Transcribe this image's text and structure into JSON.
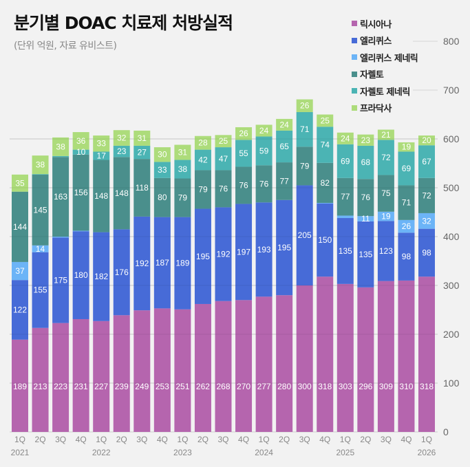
{
  "chart_data": {
    "type": "bar",
    "stacked": true,
    "title": "분기별 DOAC 치료제 처방실적",
    "subtitle": "(단위 억원, 자료 유비스트)",
    "xlabel": "",
    "ylabel": "",
    "ylim": [
      0,
      800
    ],
    "yticks": [
      0,
      100,
      200,
      300,
      400,
      500,
      600,
      700,
      800
    ],
    "grid": true,
    "legend_position": "top-right",
    "categories": [
      "1Q",
      "2Q",
      "3Q",
      "4Q",
      "1Q",
      "2Q",
      "3Q",
      "4Q",
      "1Q",
      "2Q",
      "3Q",
      "4Q",
      "1Q",
      "2Q",
      "3Q",
      "4Q",
      "1Q",
      "2Q",
      "3Q",
      "4Q",
      "1Q"
    ],
    "years": [
      "2021",
      "",
      "",
      "",
      "2022",
      "",
      "",
      "",
      "2023",
      "",
      "",
      "",
      "2024",
      "",
      "",
      "",
      "2025",
      "",
      "",
      "",
      "2026"
    ],
    "series": [
      {
        "name": "릭시아나",
        "color": "#b565ae",
        "values": [
          189,
          213,
          223,
          231,
          227,
          239,
          249,
          253,
          251,
          262,
          268,
          270,
          277,
          280,
          300,
          318,
          303,
          296,
          309,
          310,
          318
        ],
        "labels": [
          "189",
          "213",
          "223",
          "231",
          "227",
          "239",
          "249",
          "253",
          "251",
          "262",
          "268",
          "270",
          "277",
          "280",
          "300",
          "318",
          "303",
          "296",
          "309",
          "310",
          "318"
        ]
      },
      {
        "name": "엘리퀴스",
        "color": "#476bd7",
        "values": [
          122,
          155,
          175,
          180,
          182,
          176,
          192,
          187,
          189,
          195,
          192,
          197,
          193,
          195,
          205,
          150,
          135,
          135,
          123,
          98,
          98
        ],
        "labels": [
          "122",
          "155",
          "175",
          "180",
          "182",
          "176",
          "192",
          "187",
          "189",
          "195",
          "192",
          "197",
          "193",
          "195",
          "205",
          "150",
          "135",
          "135",
          "123",
          "98",
          "98"
        ]
      },
      {
        "name": "엘리퀴스 제네릭",
        "color": "#6cb4f7",
        "values": [
          37,
          14,
          2,
          1,
          0,
          0,
          0,
          0,
          0,
          0,
          0,
          0,
          0,
          0,
          0,
          1,
          5,
          11,
          19,
          26,
          32
        ],
        "labels": [
          "37",
          "14",
          "",
          "",
          "",
          "",
          "",
          "",
          "",
          "",
          "",
          "",
          "",
          "",
          "",
          "",
          "",
          "11",
          "19",
          "26",
          "32"
        ]
      },
      {
        "name": "자렐토",
        "color": "#4a8f8c",
        "values": [
          144,
          145,
          163,
          156,
          148,
          148,
          118,
          80,
          79,
          79,
          76,
          76,
          76,
          77,
          79,
          82,
          77,
          76,
          75,
          71,
          72
        ],
        "labels": [
          "144",
          "145",
          "163",
          "156",
          "148",
          "148",
          "118",
          "80",
          "79",
          "79",
          "76",
          "76",
          "76",
          "77",
          "79",
          "82",
          "77",
          "76",
          "75",
          "71",
          "72"
        ]
      },
      {
        "name": "자렐토 제네릭",
        "color": "#4bb4b4",
        "values": [
          0,
          1,
          2,
          10,
          17,
          23,
          27,
          33,
          38,
          42,
          47,
          55,
          59,
          65,
          71,
          74,
          69,
          68,
          72,
          69,
          67
        ],
        "labels": [
          "",
          "",
          "",
          "10",
          "17",
          "23",
          "27",
          "33",
          "38",
          "42",
          "47",
          "55",
          "59",
          "65",
          "71",
          "74",
          "69",
          "68",
          "72",
          "69",
          "67"
        ]
      },
      {
        "name": "프라닥사",
        "color": "#addc7b",
        "values": [
          35,
          38,
          38,
          36,
          33,
          32,
          31,
          30,
          31,
          28,
          25,
          26,
          24,
          24,
          26,
          25,
          24,
          23,
          21,
          19,
          20
        ],
        "labels": [
          "35",
          "38",
          "38",
          "36",
          "33",
          "32",
          "31",
          "30",
          "31",
          "28",
          "25",
          "26",
          "24",
          "24",
          "26",
          "25",
          "24",
          "23",
          "21",
          "19",
          "20"
        ]
      }
    ]
  }
}
